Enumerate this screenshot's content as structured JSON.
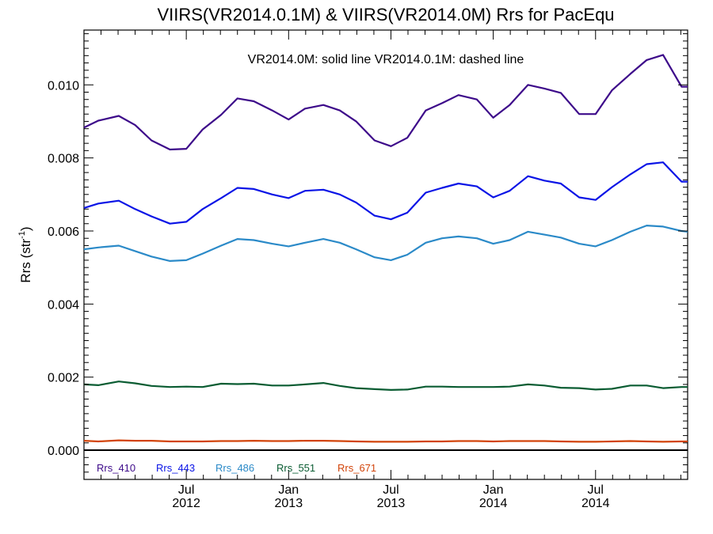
{
  "chart_data": {
    "type": "line",
    "title": "VIIRS(VR2014.0.1M) & VIIRS(VR2014.0M)  Rrs for PacEqu",
    "annotation": "VR2014.0M: solid line   VR2014.0.1M: dashed line",
    "ylabel_main": "Rrs (str",
    "ylabel_sup": "-1",
    "ylabel_close": ")",
    "xlabel": "",
    "ylim": [
      -0.0008,
      0.0115
    ],
    "xlim": [
      2012.0,
      2014.95
    ],
    "y_ticks": [
      {
        "value": 0.0,
        "label": "0.000"
      },
      {
        "value": 0.002,
        "label": "0.002"
      },
      {
        "value": 0.004,
        "label": "0.004"
      },
      {
        "value": 0.006,
        "label": "0.006"
      },
      {
        "value": 0.008,
        "label": "0.008"
      },
      {
        "value": 0.01,
        "label": "0.010"
      }
    ],
    "x_ticks": [
      {
        "value": 2012.5,
        "month": "Jul",
        "year": "2012"
      },
      {
        "value": 2013.0,
        "month": "Jan",
        "year": "2013"
      },
      {
        "value": 2013.5,
        "month": "Jul",
        "year": "2013"
      },
      {
        "value": 2014.0,
        "month": "Jan",
        "year": "2014"
      },
      {
        "value": 2014.5,
        "month": "Jul",
        "year": "2014"
      }
    ],
    "zero_line": true,
    "grid": false,
    "legend_position": "bottom-left",
    "x": [
      2012.0,
      2012.07,
      2012.17,
      2012.25,
      2012.33,
      2012.42,
      2012.5,
      2012.58,
      2012.67,
      2012.75,
      2012.83,
      2012.92,
      2013.0,
      2013.08,
      2013.17,
      2013.25,
      2013.33,
      2013.42,
      2013.5,
      2013.58,
      2013.67,
      2013.75,
      2013.83,
      2013.92,
      2014.0,
      2014.08,
      2014.17,
      2014.25,
      2014.33,
      2014.42,
      2014.5,
      2014.58,
      2014.67,
      2014.75,
      2014.83,
      2014.92,
      2014.95
    ],
    "series": [
      {
        "name": "Rrs_410",
        "color": "#3d0a8a",
        "values": [
          0.00883,
          0.00902,
          0.00915,
          0.0089,
          0.00848,
          0.00823,
          0.00825,
          0.00878,
          0.00918,
          0.00963,
          0.00955,
          0.0093,
          0.00905,
          0.00935,
          0.00945,
          0.0093,
          0.009,
          0.00848,
          0.00832,
          0.00855,
          0.0093,
          0.0095,
          0.00972,
          0.0096,
          0.0091,
          0.00945,
          0.01,
          0.0099,
          0.00978,
          0.0092,
          0.0092,
          0.00985,
          0.0103,
          0.01068,
          0.01082,
          0.00995,
          0.00995
        ]
      },
      {
        "name": "Rrs_443",
        "color": "#0a14e6",
        "values": [
          0.00663,
          0.00675,
          0.00683,
          0.0066,
          0.0064,
          0.0062,
          0.00625,
          0.0066,
          0.0069,
          0.00718,
          0.00715,
          0.007,
          0.0069,
          0.0071,
          0.00713,
          0.007,
          0.00678,
          0.00642,
          0.00632,
          0.0065,
          0.00705,
          0.00718,
          0.0073,
          0.00722,
          0.00692,
          0.0071,
          0.0075,
          0.00738,
          0.0073,
          0.00692,
          0.00685,
          0.0072,
          0.00755,
          0.00783,
          0.00788,
          0.00735,
          0.00735
        ]
      },
      {
        "name": "Rrs_486",
        "color": "#2b8ac8",
        "values": [
          0.0055,
          0.00555,
          0.0056,
          0.00545,
          0.0053,
          0.00518,
          0.0052,
          0.00538,
          0.0056,
          0.00578,
          0.00575,
          0.00565,
          0.00558,
          0.00568,
          0.00578,
          0.00568,
          0.0055,
          0.00528,
          0.0052,
          0.00535,
          0.00568,
          0.0058,
          0.00585,
          0.0058,
          0.00565,
          0.00575,
          0.00598,
          0.0059,
          0.00582,
          0.00565,
          0.00558,
          0.00575,
          0.00598,
          0.00615,
          0.00612,
          0.006,
          0.00598
        ]
      },
      {
        "name": "Rrs_551",
        "color": "#0a5c32",
        "values": [
          0.0018,
          0.00178,
          0.00188,
          0.00183,
          0.00176,
          0.00173,
          0.00174,
          0.00173,
          0.00182,
          0.00181,
          0.00182,
          0.00177,
          0.00177,
          0.0018,
          0.00184,
          0.00176,
          0.0017,
          0.00167,
          0.00165,
          0.00166,
          0.00174,
          0.00174,
          0.00173,
          0.00173,
          0.00173,
          0.00174,
          0.0018,
          0.00177,
          0.00171,
          0.0017,
          0.00166,
          0.00168,
          0.00177,
          0.00177,
          0.0017,
          0.00173,
          0.00173
        ]
      },
      {
        "name": "Rrs_671",
        "color": "#d2440a",
        "values": [
          0.00026,
          0.00024,
          0.00027,
          0.00026,
          0.00026,
          0.00024,
          0.00024,
          0.00024,
          0.00025,
          0.00025,
          0.00026,
          0.00025,
          0.00025,
          0.00026,
          0.00026,
          0.00025,
          0.00024,
          0.00023,
          0.00023,
          0.00023,
          0.00024,
          0.00024,
          0.00025,
          0.00025,
          0.00024,
          0.00025,
          0.00025,
          0.00025,
          0.00024,
          0.00023,
          0.00023,
          0.00024,
          0.00025,
          0.00024,
          0.00023,
          0.00024,
          0.00024
        ]
      }
    ]
  }
}
